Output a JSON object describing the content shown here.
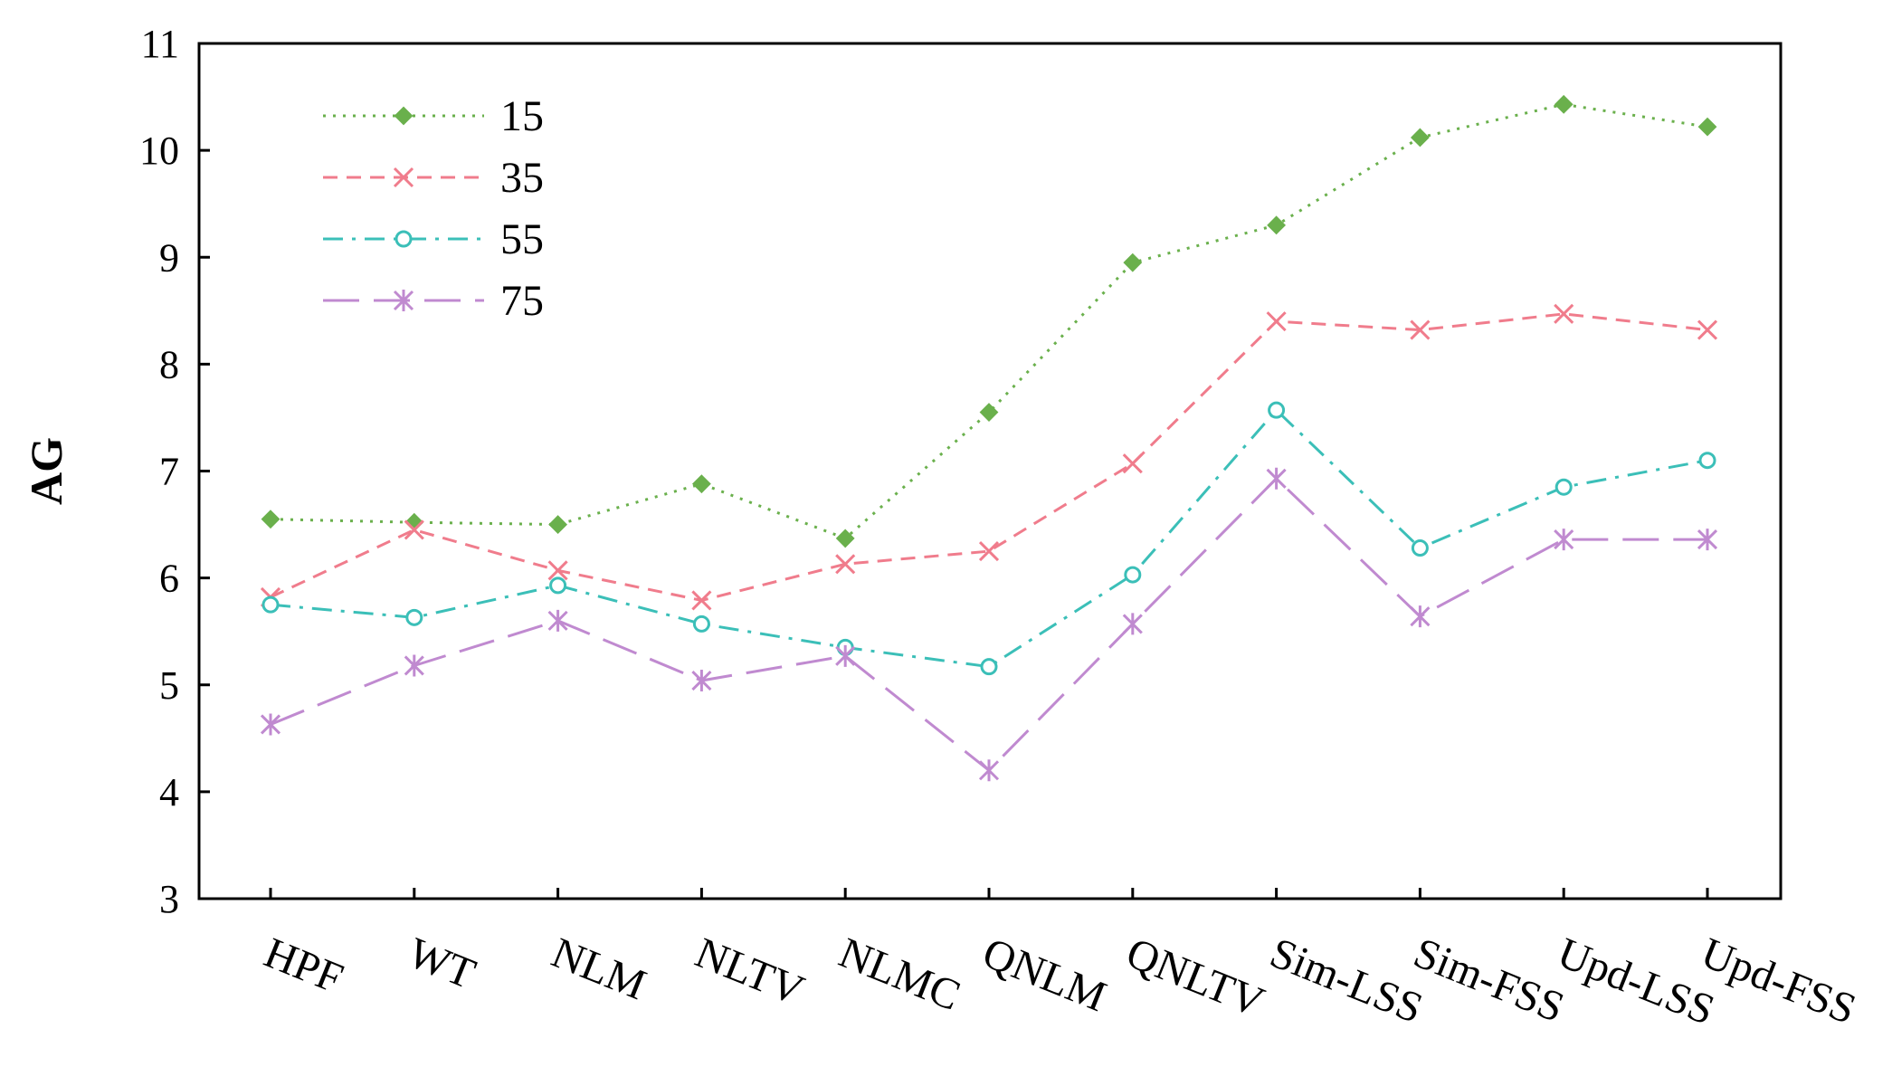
{
  "chart_data": {
    "type": "line",
    "categories": [
      "HPF",
      "WT",
      "NLM",
      "NLTV",
      "NLMC",
      "QNLM",
      "QNLTV",
      "Sim-LSS",
      "Sim-FSS",
      "Upd-LSS",
      "Upd-FSS"
    ],
    "ylabel": "AG",
    "xlabel": "",
    "ylim": [
      3,
      11
    ],
    "yticks": [
      "3",
      "4",
      "5",
      "6",
      "7",
      "8",
      "9",
      "10",
      "11"
    ],
    "grid": false,
    "legend_position": "top-left",
    "series": [
      {
        "name": "15",
        "color": "#6ab04c",
        "marker": "diamond",
        "dash": "dotted",
        "values": [
          6.55,
          6.52,
          6.5,
          6.88,
          6.37,
          7.55,
          8.95,
          9.3,
          10.12,
          10.43,
          10.22
        ]
      },
      {
        "name": "35",
        "color": "#f07c8c",
        "marker": "x",
        "dash": "dashed",
        "values": [
          5.82,
          6.45,
          6.07,
          5.79,
          6.13,
          6.25,
          7.07,
          8.4,
          8.32,
          8.47,
          8.32
        ]
      },
      {
        "name": "55",
        "color": "#3bbfb8",
        "marker": "circle",
        "dash": "dashdot",
        "values": [
          5.75,
          5.63,
          5.93,
          5.57,
          5.35,
          5.17,
          6.03,
          7.57,
          6.28,
          6.85,
          7.1
        ]
      },
      {
        "name": "75",
        "color": "#c08ad0",
        "marker": "star",
        "dash": "longdash",
        "values": [
          4.63,
          5.18,
          5.6,
          5.04,
          5.27,
          4.2,
          5.57,
          6.93,
          5.64,
          6.36,
          6.36
        ]
      }
    ]
  }
}
